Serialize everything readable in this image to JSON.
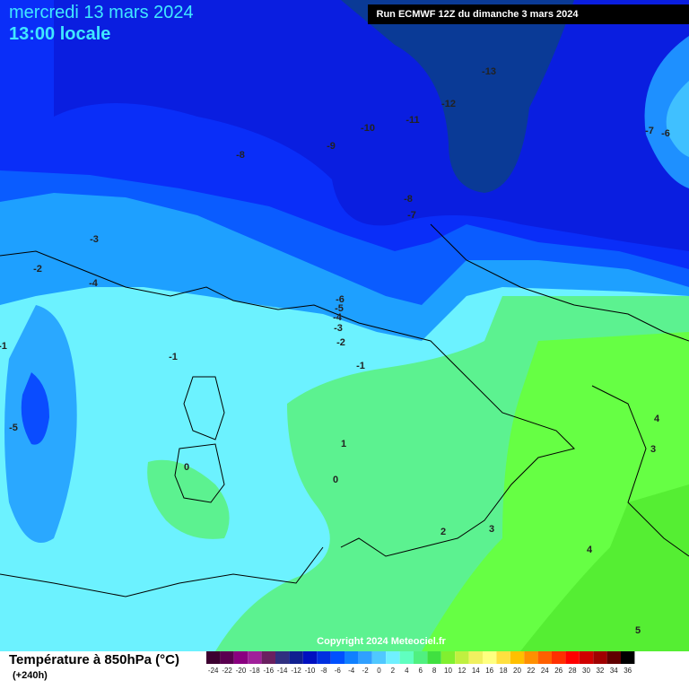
{
  "header": {
    "date": "mercredi 13 mars 2024",
    "time": "13:00 locale",
    "run": "Run ECMWF 12Z du dimanche 3 mars 2024"
  },
  "map": {
    "contour_labels": [
      -13,
      -12,
      -11,
      -10,
      -9,
      -8,
      -7,
      -6,
      -8,
      -7,
      -3,
      -2,
      -4,
      -6,
      -5,
      -4,
      -3,
      -2,
      -1,
      -1,
      -5,
      1,
      0,
      0,
      2,
      3,
      4,
      4,
      3,
      5,
      -1
    ],
    "copyright": "Copyright 2024 Meteociel.fr"
  },
  "legend": {
    "title": "Température à 850hPa (°C)",
    "subtitle": "(+240h)",
    "ticks": [
      -24,
      -22,
      -20,
      -18,
      -16,
      -14,
      -12,
      -10,
      -8,
      -6,
      -4,
      -2,
      0,
      2,
      4,
      6,
      8,
      10,
      12,
      14,
      16,
      18,
      20,
      22,
      24,
      26,
      28,
      30,
      32,
      34,
      36
    ],
    "colors": [
      "#3c0030",
      "#5a0050",
      "#8a0080",
      "#a0209a",
      "#6a2060",
      "#303080",
      "#102090",
      "#0010c0",
      "#0030e0",
      "#0050ff",
      "#1080ff",
      "#30a0ff",
      "#50c8ff",
      "#70f0ff",
      "#60ffc0",
      "#50f080",
      "#40e040",
      "#80f030",
      "#c0f040",
      "#f0f060",
      "#ffff80",
      "#ffe040",
      "#ffc000",
      "#ff9000",
      "#ff6000",
      "#ff3000",
      "#ff0000",
      "#d00000",
      "#a00000",
      "#600000",
      "#000000"
    ]
  }
}
